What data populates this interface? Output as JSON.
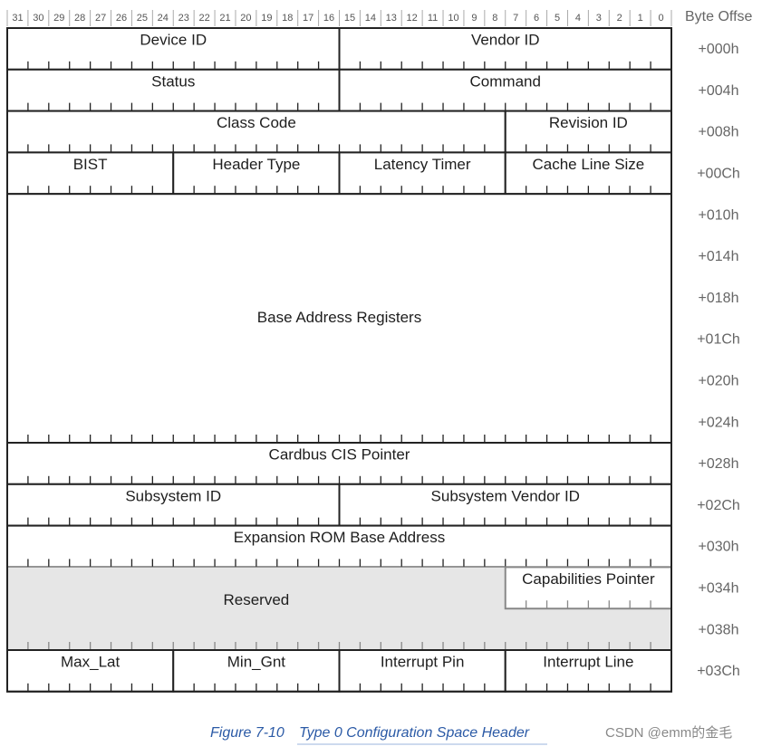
{
  "bit_ruler": {
    "column_title": "Byte Offse",
    "bits": [
      "31",
      "30",
      "29",
      "28",
      "27",
      "26",
      "25",
      "24",
      "23",
      "22",
      "21",
      "20",
      "19",
      "18",
      "17",
      "16",
      "15",
      "14",
      "13",
      "12",
      "11",
      "10",
      "9",
      "8",
      "7",
      "6",
      "5",
      "4",
      "3",
      "2",
      "1",
      "0"
    ]
  },
  "offsets": [
    "+000h",
    "+004h",
    "+008h",
    "+00Ch",
    "+010h",
    "+014h",
    "+018h",
    "+01Ch",
    "+020h",
    "+024h",
    "+028h",
    "+02Ch",
    "+030h",
    "+034h",
    "+038h",
    "+03Ch"
  ],
  "fields": [
    "Device ID",
    "Vendor ID",
    "Status",
    "Command",
    "Class Code",
    "Revision ID",
    "BIST",
    "Header Type",
    "Latency Timer",
    "Cache Line Size",
    "Base Address Registers",
    "Cardbus CIS Pointer",
    "Subsystem ID",
    "Subsystem Vendor ID",
    "Expansion ROM Base Address",
    "Reserved",
    "Capabilities Pointer",
    "Max_Lat",
    "Min_Gnt",
    "Interrupt Pin",
    "Interrupt Line"
  ],
  "caption": {
    "figure": "Figure 7-10",
    "title": "Type 0 Configuration Space Header"
  },
  "watermark": "CSDN @emm的金毛"
}
